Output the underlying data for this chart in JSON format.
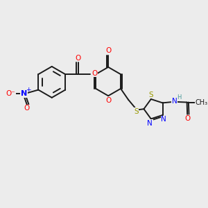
{
  "bg": "#ececec",
  "lw": 1.4,
  "fs": 7.5,
  "bond_color": "#1a1a1a",
  "xlim": [
    0,
    10
  ],
  "ylim": [
    0,
    10
  ]
}
